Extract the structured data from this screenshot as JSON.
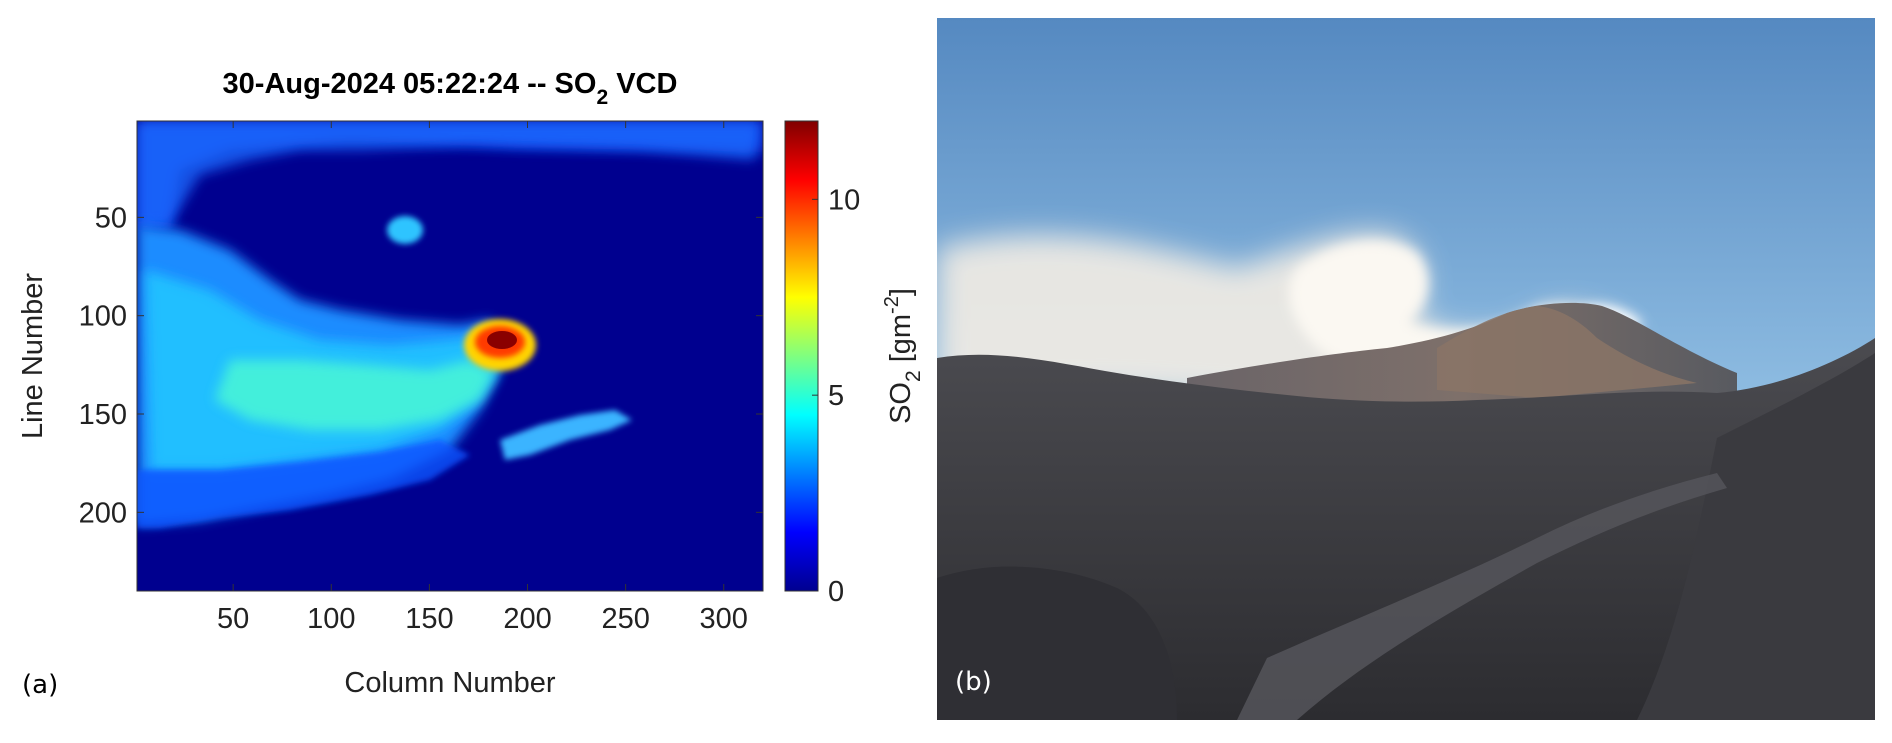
{
  "chart_data": {
    "type": "heatmap",
    "title": "30-Aug-2024 05:22:24 -- SO",
    "title_subscript": "2",
    "title_suffix": " VCD",
    "xlabel": "Column Number",
    "ylabel": "Line Number",
    "xlim": [
      1,
      320
    ],
    "ylim": [
      1,
      240
    ],
    "y_reversed": true,
    "xticks": [
      50,
      100,
      150,
      200,
      250,
      300
    ],
    "yticks": [
      50,
      100,
      150,
      200
    ],
    "colormap": "jet",
    "colorbar": {
      "label_main": "SO",
      "label_sub": "2",
      "label_unit": " [gm",
      "label_sup": "-2",
      "label_close": "]",
      "range": [
        0,
        12
      ],
      "ticks": [
        0,
        5,
        10
      ]
    },
    "background_value": 0.6,
    "plume_features": [
      {
        "description_value": "hotspot",
        "x": 183,
        "y": 112,
        "peak": 12
      },
      {
        "description_value": "plume-body",
        "x": 110,
        "y": 125,
        "peak": 5
      },
      {
        "description_value": "tail",
        "x": 230,
        "y": 155,
        "peak": 4.2
      }
    ]
  },
  "labels": {
    "panel_a": "(a)",
    "panel_b": "(b)"
  },
  "colors": {
    "sky_top": "#5a8ec4",
    "sky_bottom": "#9cc4e4",
    "ground": "#3b3c40",
    "plume": "#f4efe6"
  }
}
